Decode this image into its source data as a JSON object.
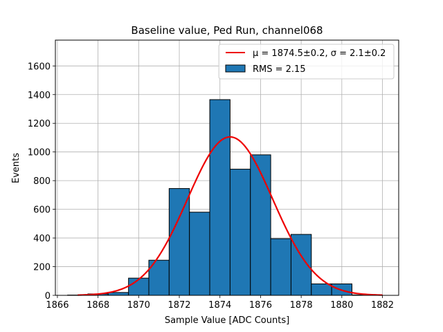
{
  "chart_data": {
    "type": "bar",
    "title": "Baseline value, Ped Run, channel068",
    "xlabel": "Sample Value [ADC Counts]",
    "ylabel": "Events",
    "xlim": [
      1865.9,
      1882.8
    ],
    "ylim": [
      0,
      1780
    ],
    "xticks": [
      1866,
      1868,
      1870,
      1872,
      1874,
      1876,
      1878,
      1880,
      1882
    ],
    "yticks": [
      0,
      200,
      400,
      600,
      800,
      1000,
      1200,
      1400,
      1600
    ],
    "grid": true,
    "legend_position": "top-right",
    "histogram": {
      "name": "RMS = 2.15",
      "color": "#1f77b4",
      "edge_color": "#000000",
      "bins": [
        {
          "x0": 1866.5,
          "x1": 1867.5,
          "value": 2
        },
        {
          "x0": 1867.5,
          "x1": 1868.5,
          "value": 10
        },
        {
          "x0": 1868.5,
          "x1": 1869.5,
          "value": 20
        },
        {
          "x0": 1869.5,
          "x1": 1870.5,
          "value": 120
        },
        {
          "x0": 1870.5,
          "x1": 1871.5,
          "value": 245
        },
        {
          "x0": 1871.5,
          "x1": 1872.5,
          "value": 745
        },
        {
          "x0": 1872.5,
          "x1": 1873.5,
          "value": 580
        },
        {
          "x0": 1873.5,
          "x1": 1874.5,
          "value": 1365
        },
        {
          "x0": 1874.5,
          "x1": 1875.5,
          "value": 880
        },
        {
          "x0": 1875.5,
          "x1": 1876.5,
          "value": 980
        },
        {
          "x0": 1876.5,
          "x1": 1877.5,
          "value": 395
        },
        {
          "x0": 1877.5,
          "x1": 1878.5,
          "value": 425
        },
        {
          "x0": 1878.5,
          "x1": 1879.5,
          "value": 80
        },
        {
          "x0": 1879.5,
          "x1": 1880.5,
          "value": 80
        },
        {
          "x0": 1880.5,
          "x1": 1881.5,
          "value": 3
        }
      ]
    },
    "fit": {
      "name": "μ = 1874.5±0.2, σ = 2.1±0.2",
      "type": "gaussian",
      "color": "#ee0000",
      "mu": 1874.5,
      "sigma": 2.1,
      "amplitude": 1105,
      "x_range": [
        1867,
        1882
      ]
    }
  }
}
